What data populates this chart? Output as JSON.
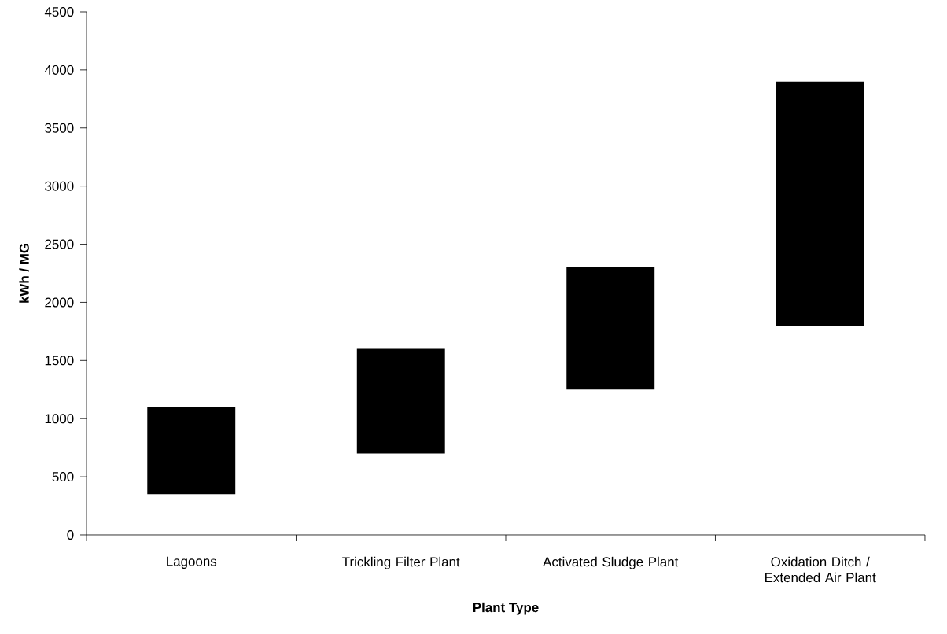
{
  "chart_data": {
    "type": "bar",
    "xlabel": "Plant Type",
    "ylabel": "kWh / MG",
    "categories": [
      "Lagoons",
      "Trickling Filter Plant",
      "Activated Sludge Plant",
      "Oxidation Ditch / Extended Air Plant"
    ],
    "base": [
      350,
      700,
      1250,
      1800
    ],
    "values": [
      750,
      900,
      1050,
      2100
    ],
    "color": "#000000",
    "ylim": [
      0,
      4500
    ],
    "yticks": [
      0,
      500,
      1000,
      1500,
      2000,
      2500,
      3000,
      3500,
      4000,
      4500
    ]
  }
}
